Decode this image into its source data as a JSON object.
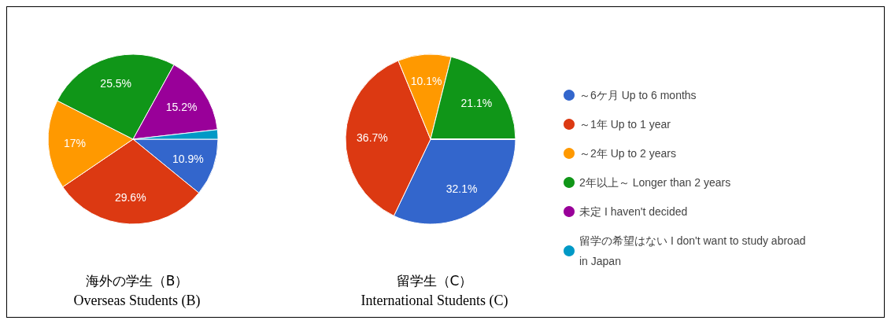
{
  "chart_data": {
    "type": "pie",
    "categories": [
      "～6ケ月 Up to 6 months",
      "～1年 Up to 1 year",
      "～2年 Up to 2 years",
      "2年以上～ Longer than 2 years",
      "未定 I haven't decided",
      "留学の希望はない I don't want to study abroad in Japan"
    ],
    "colors": [
      "#3366cc",
      "#dc3912",
      "#ff9900",
      "#109618",
      "#990099",
      "#0099c6"
    ],
    "legend": "right",
    "series": [
      {
        "name": "海外の学生（B）\nOverseas Students (B)",
        "values": [
          10.9,
          29.6,
          17,
          25.5,
          15.2,
          1.8
        ],
        "value_labels": [
          "10.9%",
          "29.6%",
          "17%",
          "25.5%",
          "15.2%",
          null
        ]
      },
      {
        "name": "留学生（C）\nInternational Students (C)",
        "values": [
          32.1,
          36.7,
          10.1,
          21.1,
          0,
          0
        ],
        "value_labels": [
          "32.1%",
          "36.7%",
          "10.1%",
          "21.1%",
          null,
          null
        ]
      }
    ]
  }
}
